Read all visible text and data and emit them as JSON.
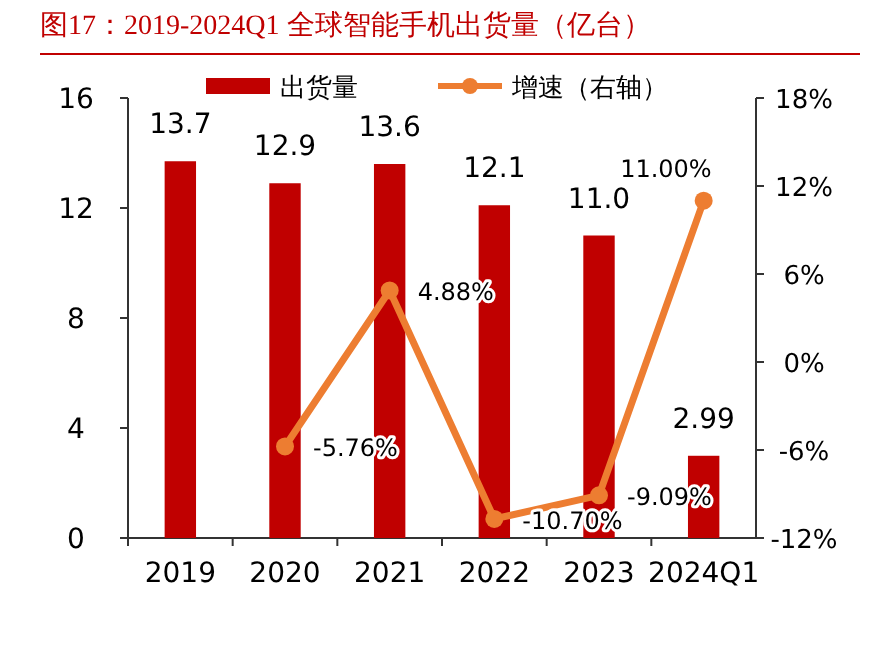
{
  "chart_data": {
    "type": "bar",
    "title": "图17：2019-2024Q1 全球智能手机出货量（亿台）",
    "categories": [
      "2019",
      "2020",
      "2021",
      "2022",
      "2023",
      "2024Q1"
    ],
    "series": [
      {
        "name": "出货量",
        "color": "#c00000",
        "values": [
          13.7,
          12.9,
          13.6,
          12.1,
          11.0,
          2.99
        ],
        "value_labels": [
          "13.7",
          "12.9",
          "13.6",
          "12.1",
          "11.0",
          "2.99"
        ]
      },
      {
        "name": "增速（右轴）",
        "type": "line",
        "axis": "y2",
        "color": "#ed7d31",
        "marker": "circle",
        "values": [
          null,
          -5.76,
          4.88,
          -10.7,
          -9.09,
          11.0
        ],
        "value_labels": [
          null,
          "-5.76%",
          "4.88%",
          "-10.70%",
          "-9.09%",
          "11.00%"
        ]
      }
    ],
    "ylim": [
      0,
      16
    ],
    "yticks": [
      0,
      4,
      8,
      12,
      16
    ],
    "y2lim": [
      -12,
      18
    ],
    "y2ticks": [
      {
        "value": -12,
        "label": "-12%"
      },
      {
        "value": -6,
        "label": "-6%"
      },
      {
        "value": 0,
        "label": "0%"
      },
      {
        "value": 6,
        "label": "6%"
      },
      {
        "value": 12,
        "label": "12%"
      },
      {
        "value": 18,
        "label": "18%"
      }
    ],
    "legend": "top",
    "grid": false
  }
}
